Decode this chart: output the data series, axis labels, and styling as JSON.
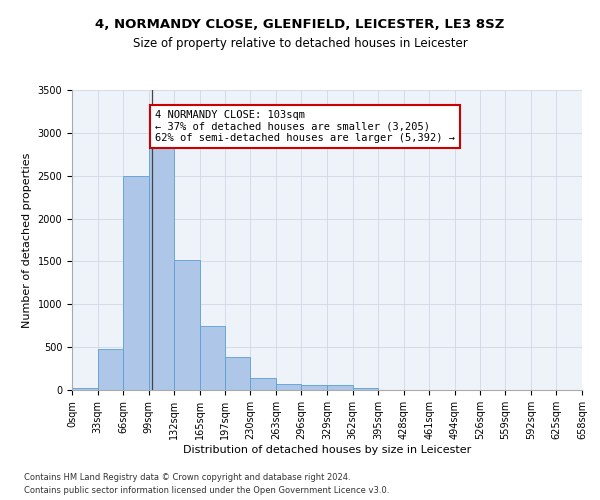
{
  "title1": "4, NORMANDY CLOSE, GLENFIELD, LEICESTER, LE3 8SZ",
  "title2": "Size of property relative to detached houses in Leicester",
  "xlabel": "Distribution of detached houses by size in Leicester",
  "ylabel": "Number of detached properties",
  "footer1": "Contains HM Land Registry data © Crown copyright and database right 2024.",
  "footer2": "Contains public sector information licensed under the Open Government Licence v3.0.",
  "bin_edges": [
    0,
    33,
    66,
    99,
    132,
    165,
    197,
    230,
    263,
    296,
    329,
    362,
    395,
    428,
    461,
    494,
    526,
    559,
    592,
    625,
    658
  ],
  "bar_values": [
    25,
    480,
    2500,
    2820,
    1520,
    750,
    390,
    145,
    70,
    55,
    55,
    25,
    0,
    0,
    0,
    0,
    0,
    0,
    0,
    0
  ],
  "bar_color": "#aec6e8",
  "bar_edge_color": "#5a9fd4",
  "grid_color": "#d0d8e8",
  "annotation_line1": "4 NORMANDY CLOSE: 103sqm",
  "annotation_line2": "← 37% of detached houses are smaller (3,205)",
  "annotation_line3": "62% of semi-detached houses are larger (5,392) →",
  "annotation_box_color": "#ffffff",
  "annotation_box_edge": "#cc0000",
  "vline_x": 103,
  "vline_color": "#444444",
  "ylim": [
    0,
    3500
  ],
  "yticks": [
    0,
    500,
    1000,
    1500,
    2000,
    2500,
    3000,
    3500
  ],
  "background_color": "#eef2f9",
  "title1_fontsize": 9.5,
  "title2_fontsize": 8.5,
  "xlabel_fontsize": 8,
  "ylabel_fontsize": 8,
  "tick_fontsize": 7,
  "annotation_fontsize": 7.5,
  "footer_fontsize": 6
}
